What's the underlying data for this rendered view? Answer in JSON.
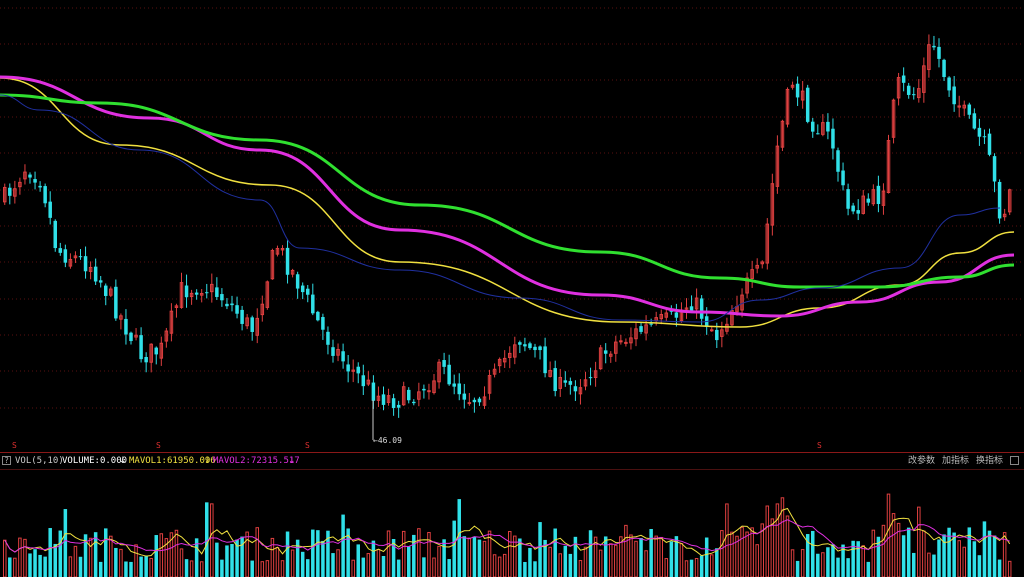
{
  "chart_data": [
    {
      "type": "candlestick",
      "series": [
        {
          "name": "MA-yellow",
          "color": "#f0e040",
          "values": [
            [
              0,
              78
            ],
            [
              120,
              145
            ],
            [
              270,
              185
            ],
            [
              400,
              262
            ],
            [
              620,
              322
            ],
            [
              740,
              327
            ],
            [
              820,
              308
            ],
            [
              900,
              285
            ],
            [
              960,
              253
            ],
            [
              1014,
              232
            ]
          ]
        },
        {
          "name": "MA-magenta",
          "color": "#e030e0",
          "values": [
            [
              0,
              77
            ],
            [
              150,
              118
            ],
            [
              260,
              150
            ],
            [
              400,
              230
            ],
            [
              600,
              295
            ],
            [
              700,
              312
            ],
            [
              780,
              316
            ],
            [
              860,
              302
            ],
            [
              940,
              282
            ],
            [
              1014,
              255
            ]
          ]
        },
        {
          "name": "MA-green",
          "color": "#30e030",
          "values": [
            [
              0,
              95
            ],
            [
              100,
              103
            ],
            [
              260,
              140
            ],
            [
              420,
              205
            ],
            [
              600,
              252
            ],
            [
              720,
              278
            ],
            [
              800,
              287
            ],
            [
              880,
              287
            ],
            [
              960,
              277
            ],
            [
              1014,
              265
            ]
          ]
        },
        {
          "name": "MA-blue",
          "color": "#2030a0",
          "values": [
            [
              0,
              95
            ],
            [
              40,
              110
            ],
            [
              140,
              150
            ],
            [
              260,
              200
            ],
            [
              300,
              248
            ],
            [
              400,
              270
            ],
            [
              520,
              298
            ],
            [
              620,
              320
            ],
            [
              700,
              322
            ],
            [
              760,
              300
            ],
            [
              820,
              288
            ],
            [
              900,
              268
            ],
            [
              960,
              215
            ],
            [
              1000,
              208
            ]
          ]
        }
      ],
      "annotations": {
        "low_marker": "46.09",
        "signal_marks": [
          "S",
          "S",
          "S",
          "S"
        ]
      }
    },
    {
      "type": "bar",
      "title": "VOL(5,10)",
      "indicators": [
        {
          "name": "VOLUME",
          "value": "0.000",
          "color": "#ffffff"
        },
        {
          "name": "MAVOL1",
          "value": "61950.096",
          "color": "#f0e040"
        },
        {
          "name": "MAVOL2",
          "value": "72315.517",
          "color": "#e030e0"
        }
      ]
    }
  ],
  "toolbar": {
    "btn1": "改参数",
    "btn2": "加指标",
    "btn3": "换指标",
    "question": "?"
  },
  "colors": {
    "up": "#e04040",
    "down": "#30e0e8",
    "grid": "#5a1010",
    "bg": "#000000"
  }
}
